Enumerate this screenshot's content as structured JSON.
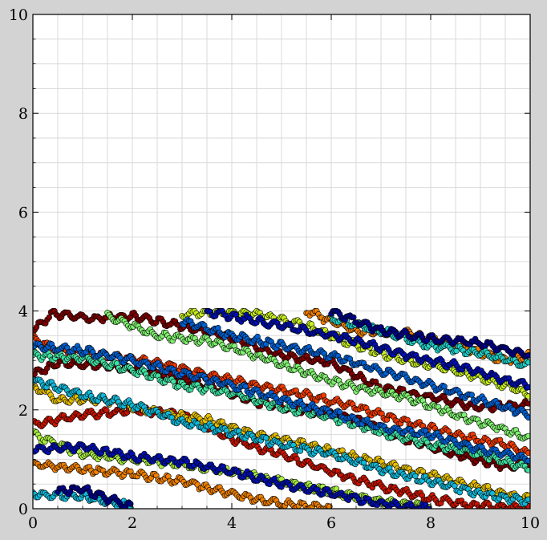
{
  "chart_data": {
    "type": "scatter",
    "title": "",
    "xlabel": "",
    "ylabel": "",
    "xlim": [
      0,
      10
    ],
    "ylim": [
      0,
      10
    ],
    "x_ticks": [
      "0",
      "2",
      "4",
      "6",
      "8",
      "10"
    ],
    "y_ticks": [
      "0",
      "2",
      "4",
      "6",
      "8",
      "10"
    ],
    "grid": true,
    "minor_grid": true,
    "legend": "none",
    "note": "Noisy diagonal trajectories confined to the band 0 ≤ y ≤ 4, wrapping vertically; markers coloured with a jet colormap.",
    "series": [
      {
        "color": "#7f0000",
        "points": [
          [
            0.0,
            3.6
          ],
          [
            0.4,
            3.95
          ],
          [
            1.2,
            3.85
          ],
          [
            2.0,
            3.9
          ],
          [
            3.0,
            3.7
          ],
          [
            4.0,
            3.45
          ],
          [
            5.0,
            3.1
          ],
          [
            6.0,
            2.95
          ],
          [
            7.0,
            2.45
          ],
          [
            8.0,
            2.25
          ],
          [
            9.0,
            2.05
          ],
          [
            10.0,
            2.1
          ]
        ]
      },
      {
        "color": "#7f0000",
        "points": [
          [
            0.0,
            2.7
          ],
          [
            0.5,
            2.95
          ],
          [
            1.5,
            2.9
          ],
          [
            2.5,
            2.75
          ],
          [
            3.5,
            2.5
          ],
          [
            4.5,
            2.15
          ],
          [
            5.5,
            2.0
          ],
          [
            6.5,
            1.8
          ],
          [
            7.5,
            1.4
          ],
          [
            8.5,
            1.1
          ],
          [
            9.5,
            0.85
          ],
          [
            10.0,
            0.9
          ]
        ]
      },
      {
        "color": "#c81400",
        "points": [
          [
            0.0,
            1.7
          ],
          [
            1.0,
            1.9
          ],
          [
            2.0,
            2.0
          ],
          [
            3.0,
            1.9
          ],
          [
            4.0,
            1.4
          ],
          [
            5.0,
            1.1
          ],
          [
            6.0,
            0.75
          ],
          [
            7.0,
            0.45
          ],
          [
            8.0,
            0.2
          ],
          [
            9.0,
            0.05
          ],
          [
            10.0,
            0.0
          ]
        ]
      },
      {
        "color": "#ee3a00",
        "points": [
          [
            0.0,
            3.45
          ],
          [
            0.5,
            3.2
          ],
          [
            1.5,
            3.1
          ],
          [
            2.5,
            2.95
          ],
          [
            3.5,
            2.7
          ],
          [
            4.5,
            2.5
          ],
          [
            5.5,
            2.3
          ],
          [
            6.5,
            2.05
          ],
          [
            7.5,
            1.75
          ],
          [
            8.5,
            1.5
          ],
          [
            9.5,
            1.3
          ],
          [
            10.0,
            1.1
          ]
        ]
      },
      {
        "color": "#f08000",
        "points": [
          [
            5.5,
            4.0
          ],
          [
            6.5,
            3.6
          ],
          [
            7.5,
            3.55
          ],
          [
            8.5,
            3.3
          ],
          [
            9.5,
            3.0
          ],
          [
            10.0,
            3.1
          ]
        ]
      },
      {
        "color": "#f08000",
        "points": [
          [
            0.0,
            0.9
          ],
          [
            1.0,
            0.8
          ],
          [
            2.0,
            0.7
          ],
          [
            3.0,
            0.55
          ],
          [
            4.0,
            0.3
          ],
          [
            5.0,
            0.1
          ],
          [
            6.0,
            0.0
          ]
        ]
      },
      {
        "color": "#e6c000",
        "points": [
          [
            0.0,
            2.5
          ],
          [
            0.5,
            2.2
          ],
          [
            1.5,
            2.2
          ],
          [
            2.5,
            1.95
          ],
          [
            3.5,
            1.8
          ],
          [
            4.5,
            1.5
          ],
          [
            5.5,
            1.3
          ],
          [
            6.5,
            1.05
          ],
          [
            7.5,
            0.8
          ],
          [
            8.5,
            0.55
          ],
          [
            9.5,
            0.3
          ],
          [
            10.0,
            0.2
          ]
        ]
      },
      {
        "color": "#c8f020",
        "points": [
          [
            3.0,
            3.9
          ],
          [
            3.5,
            4.0
          ],
          [
            4.5,
            3.95
          ],
          [
            5.5,
            3.7
          ],
          [
            6.5,
            3.3
          ],
          [
            7.5,
            3.0
          ],
          [
            8.5,
            2.8
          ],
          [
            9.5,
            2.5
          ],
          [
            10.0,
            2.3
          ]
        ]
      },
      {
        "color": "#a8f040",
        "points": [
          [
            0.0,
            1.5
          ],
          [
            1.0,
            1.1
          ],
          [
            2.0,
            1.0
          ],
          [
            3.0,
            0.9
          ],
          [
            4.0,
            0.75
          ],
          [
            5.0,
            0.55
          ],
          [
            6.0,
            0.35
          ],
          [
            7.0,
            0.15
          ],
          [
            8.0,
            0.05
          ]
        ]
      },
      {
        "color": "#80f070",
        "points": [
          [
            1.5,
            3.9
          ],
          [
            2.5,
            3.5
          ],
          [
            3.5,
            3.4
          ],
          [
            4.5,
            3.1
          ],
          [
            5.5,
            2.75
          ],
          [
            6.5,
            2.45
          ],
          [
            7.5,
            2.25
          ],
          [
            8.5,
            1.9
          ],
          [
            9.5,
            1.6
          ],
          [
            10.0,
            1.4
          ]
        ]
      },
      {
        "color": "#40e0a0",
        "points": [
          [
            0.0,
            3.1
          ],
          [
            1.0,
            3.05
          ],
          [
            2.0,
            2.8
          ],
          [
            3.0,
            2.5
          ],
          [
            4.0,
            2.35
          ],
          [
            5.0,
            2.05
          ],
          [
            6.0,
            1.85
          ],
          [
            7.0,
            1.55
          ],
          [
            8.0,
            1.3
          ],
          [
            9.0,
            1.1
          ],
          [
            10.0,
            0.8
          ]
        ]
      },
      {
        "color": "#20d0c8",
        "points": [
          [
            6.0,
            3.85
          ],
          [
            7.0,
            3.6
          ],
          [
            8.0,
            3.3
          ],
          [
            9.0,
            3.15
          ],
          [
            10.0,
            2.9
          ]
        ]
      },
      {
        "color": "#10b8d8",
        "points": [
          [
            0.0,
            2.6
          ],
          [
            1.0,
            2.3
          ],
          [
            2.0,
            2.1
          ],
          [
            3.0,
            1.75
          ],
          [
            4.0,
            1.55
          ],
          [
            5.0,
            1.3
          ],
          [
            6.0,
            1.1
          ],
          [
            7.0,
            0.8
          ],
          [
            8.0,
            0.55
          ],
          [
            9.0,
            0.3
          ],
          [
            10.0,
            0.15
          ]
        ]
      },
      {
        "color": "#10b8d8",
        "points": [
          [
            0.0,
            0.3
          ],
          [
            1.0,
            0.25
          ],
          [
            2.0,
            0.05
          ]
        ]
      },
      {
        "color": "#0060d0",
        "points": [
          [
            0.0,
            3.3
          ],
          [
            1.0,
            3.2
          ],
          [
            2.0,
            3.0
          ],
          [
            3.0,
            2.75
          ],
          [
            4.0,
            2.5
          ],
          [
            5.0,
            2.2
          ],
          [
            6.0,
            1.95
          ],
          [
            7.0,
            1.65
          ],
          [
            8.0,
            1.5
          ],
          [
            9.0,
            1.2
          ],
          [
            10.0,
            1.0
          ]
        ]
      },
      {
        "color": "#0060d0",
        "points": [
          [
            3.0,
            3.8
          ],
          [
            4.0,
            3.5
          ],
          [
            5.0,
            3.3
          ],
          [
            6.0,
            3.1
          ],
          [
            7.0,
            2.8
          ],
          [
            8.0,
            2.5
          ],
          [
            9.0,
            2.2
          ],
          [
            10.0,
            1.9
          ]
        ]
      },
      {
        "color": "#0010b0",
        "points": [
          [
            0.0,
            1.2
          ],
          [
            1.0,
            1.25
          ],
          [
            2.0,
            1.05
          ],
          [
            3.0,
            0.95
          ],
          [
            4.0,
            0.75
          ],
          [
            5.0,
            0.5
          ],
          [
            6.0,
            0.3
          ],
          [
            7.0,
            0.1
          ],
          [
            8.0,
            0.0
          ]
        ]
      },
      {
        "color": "#0010b0",
        "points": [
          [
            3.5,
            4.0
          ],
          [
            4.5,
            3.8
          ],
          [
            5.5,
            3.6
          ],
          [
            6.5,
            3.4
          ],
          [
            7.5,
            3.1
          ],
          [
            8.5,
            2.9
          ],
          [
            9.5,
            2.6
          ],
          [
            10.0,
            2.5
          ]
        ]
      },
      {
        "color": "#00008a",
        "points": [
          [
            0.5,
            0.35
          ],
          [
            1.0,
            0.4
          ],
          [
            1.5,
            0.2
          ],
          [
            2.0,
            0.05
          ]
        ]
      },
      {
        "color": "#00008a",
        "points": [
          [
            6.0,
            4.0
          ],
          [
            7.0,
            3.6
          ],
          [
            8.0,
            3.45
          ],
          [
            9.0,
            3.35
          ],
          [
            10.0,
            3.1
          ]
        ]
      }
    ]
  }
}
